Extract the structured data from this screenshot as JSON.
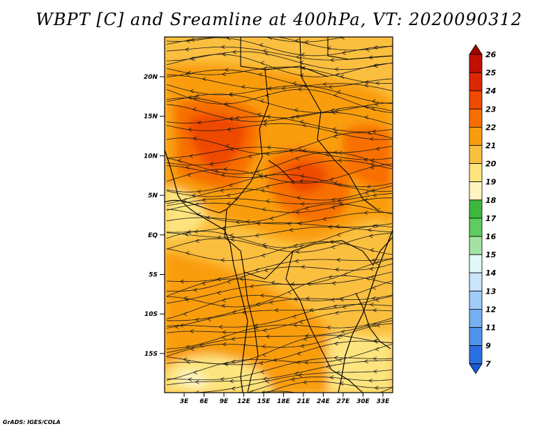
{
  "title": "WBPT [C] and Sreamline at 400hPa, VT: 2020090312",
  "footer": "GrADS: IGES/COLA",
  "map": {
    "lat_labels": [
      "20N",
      "15N",
      "10N",
      "5N",
      "EQ",
      "5S",
      "10S",
      "15S"
    ],
    "lon_labels": [
      "3E",
      "6E",
      "9E",
      "12E",
      "15E",
      "18E",
      "21E",
      "24E",
      "27E",
      "30E",
      "33E"
    ]
  },
  "colorbar": {
    "labels": [
      "26",
      "25",
      "24",
      "23",
      "22",
      "21",
      "20",
      "19",
      "18",
      "17",
      "16",
      "15",
      "14",
      "13",
      "12",
      "11",
      "9",
      "7"
    ],
    "colors": [
      "#a50000",
      "#c30f00",
      "#dc2800",
      "#ef4a00",
      "#f86f00",
      "#f99d10",
      "#fbbf40",
      "#fde47f",
      "#fdf4c0",
      "#3cb83c",
      "#5ecc5e",
      "#a2e3a2",
      "#e0f8f8",
      "#c9e4fb",
      "#9fccf8",
      "#75b0f2",
      "#4f94ec",
      "#2a6fe1",
      "#1a5ad4"
    ]
  },
  "colors": {
    "background": "#ffffff",
    "map_base": "#fbbf40",
    "streamline": "#1a1a1a",
    "boundary": "#000000"
  }
}
